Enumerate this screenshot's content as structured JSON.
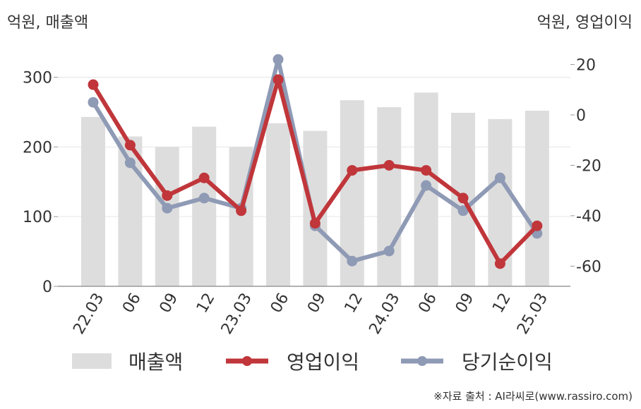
{
  "units": {
    "left": "억원, 매출액",
    "right": "억원, 영업이익"
  },
  "chart_data": {
    "type": "bar+line",
    "categories": [
      "22.03",
      "06",
      "09",
      "12",
      "23.03",
      "06",
      "09",
      "12",
      "24.03",
      "06",
      "09",
      "12",
      "25.03"
    ],
    "left_axis": {
      "ylim": [
        0,
        340
      ],
      "ticks": [
        0,
        100,
        200,
        300
      ],
      "tick_labels": [
        "0",
        "100",
        "200",
        "300"
      ]
    },
    "right_axis": {
      "ylim": [
        -68,
        26
      ],
      "ticks": [
        20,
        0,
        -20,
        -40,
        -60
      ],
      "tick_labels": [
        "20",
        "0",
        "-20",
        "-40",
        "-60"
      ]
    },
    "series": [
      {
        "name": "매출액",
        "type": "bar",
        "axis": "left",
        "color": "#dddddd",
        "values": [
          243,
          215,
          200,
          229,
          200,
          234,
          223,
          267,
          257,
          278,
          249,
          240,
          252
        ]
      },
      {
        "name": "영업이익",
        "type": "line",
        "axis": "right",
        "color": "#c0363a",
        "values": [
          12,
          -12,
          -32,
          -25,
          -38,
          14,
          -43,
          -22,
          -20,
          -22,
          -33,
          -59,
          -44
        ]
      },
      {
        "name": "당기순이익",
        "type": "line",
        "axis": "right",
        "color": "#8f9ab5",
        "values": [
          5,
          -19,
          -37,
          -33,
          -37,
          22,
          -44,
          -58,
          -54,
          -28,
          -38,
          -25,
          -47
        ]
      }
    ],
    "grid": true,
    "legend": "bottom"
  },
  "legend": {
    "items": [
      {
        "label": "매출액",
        "kind": "bar",
        "color": "#dddddd"
      },
      {
        "label": "영업이익",
        "kind": "line",
        "color": "#c0363a"
      },
      {
        "label": "당기순이익",
        "kind": "line",
        "color": "#8f9ab5"
      }
    ]
  },
  "source": "※자료 출처 : AI라씨로(www.rassiro.com)"
}
